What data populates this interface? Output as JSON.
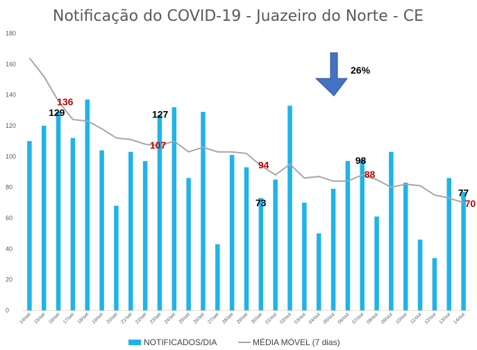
{
  "chart_data": {
    "type": "bar",
    "title": "Notificação do COVID-19 - Juazeiro do Norte - CE",
    "categories": [
      "14/set",
      "15/set",
      "16/set",
      "17/set",
      "18/set",
      "19/set",
      "20/set",
      "21/set",
      "22/set",
      "23/set",
      "24/set",
      "25/set",
      "26/set",
      "27/set",
      "28/set",
      "29/set",
      "30/set",
      "01/out",
      "02/out",
      "03/out",
      "04/out",
      "05/out",
      "06/out",
      "07/out",
      "08/out",
      "09/out",
      "10/out",
      "11/out",
      "12/out",
      "13/out",
      "14/out"
    ],
    "series": [
      {
        "name": "NOTIFICADOS/DIA",
        "type": "bar",
        "color": "#1fb4e8",
        "values": [
          110,
          120,
          129,
          112,
          137,
          104,
          68,
          103,
          97,
          127,
          132,
          86,
          129,
          43,
          101,
          93,
          73,
          85,
          133,
          70,
          50,
          79,
          97,
          98,
          61,
          103,
          83,
          46,
          34,
          86,
          77
        ]
      },
      {
        "name": "MÉDIA MÓVEL (7 dias)",
        "type": "line",
        "color": "#a6a6a6",
        "values": [
          164,
          152,
          136,
          124,
          123,
          118,
          112,
          111,
          108,
          107,
          110,
          103,
          106,
          103,
          103,
          102,
          94,
          88,
          95,
          86,
          87,
          84,
          84,
          88,
          85,
          80,
          82,
          81,
          75,
          73,
          70
        ]
      }
    ],
    "ylim": [
      0,
      180
    ],
    "yticks": [
      0,
      20,
      40,
      60,
      80,
      100,
      120,
      140,
      160,
      180
    ],
    "grid": false,
    "legend": "bottom",
    "annotations": [
      {
        "text": "136",
        "color": "red",
        "category": "16/set",
        "y": 136
      },
      {
        "text": "129",
        "color": "black",
        "category": "16/set",
        "y": 129
      },
      {
        "text": "127",
        "color": "black",
        "category": "23/set",
        "y": 127
      },
      {
        "text": "107",
        "color": "red",
        "category": "23/set",
        "y": 107
      },
      {
        "text": "94",
        "color": "red",
        "category": "30/set",
        "y": 94
      },
      {
        "text": "73",
        "color": "black",
        "category": "30/set",
        "y": 73
      },
      {
        "text": "98",
        "color": "black",
        "category": "07/out",
        "y": 98
      },
      {
        "text": "88",
        "color": "red",
        "category": "07/out",
        "y": 88
      },
      {
        "text": "77",
        "color": "black",
        "category": "14/out",
        "y": 77
      },
      {
        "text": "70",
        "color": "red",
        "category": "14/out",
        "y": 70
      }
    ],
    "arrow": {
      "direction": "down",
      "label": "26%",
      "color": "#4472c4"
    }
  }
}
